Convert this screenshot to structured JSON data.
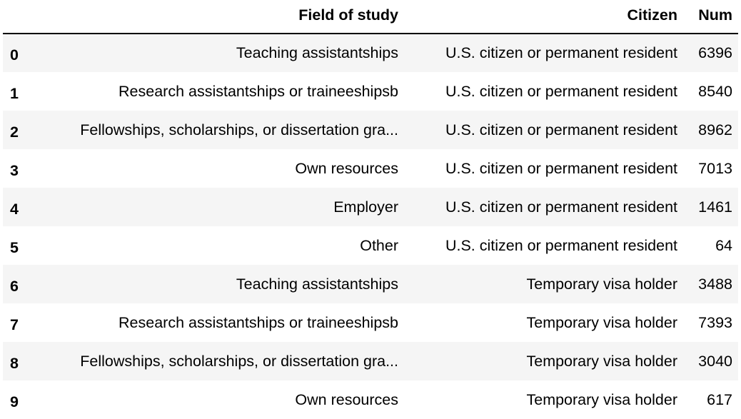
{
  "table": {
    "columns": [
      "",
      "Field of study",
      "Citizen",
      "Num"
    ],
    "rows": [
      {
        "index": "0",
        "field": "Teaching assistantships",
        "citizen": "U.S. citizen or permanent resident",
        "num": "6396"
      },
      {
        "index": "1",
        "field": "Research assistantships or traineeshipsb",
        "citizen": "U.S. citizen or permanent resident",
        "num": "8540"
      },
      {
        "index": "2",
        "field": "Fellowships, scholarships, or dissertation gra...",
        "citizen": "U.S. citizen or permanent resident",
        "num": "8962"
      },
      {
        "index": "3",
        "field": "Own resources",
        "citizen": "U.S. citizen or permanent resident",
        "num": "7013"
      },
      {
        "index": "4",
        "field": "Employer",
        "citizen": "U.S. citizen or permanent resident",
        "num": "1461"
      },
      {
        "index": "5",
        "field": "Other",
        "citizen": "U.S. citizen or permanent resident",
        "num": "64"
      },
      {
        "index": "6",
        "field": "Teaching assistantships",
        "citizen": "Temporary visa holder",
        "num": "3488"
      },
      {
        "index": "7",
        "field": "Research assistantships or traineeshipsb",
        "citizen": "Temporary visa holder",
        "num": "7393"
      },
      {
        "index": "8",
        "field": "Fellowships, scholarships, or dissertation gra...",
        "citizen": "Temporary visa holder",
        "num": "3040"
      },
      {
        "index": "9",
        "field": "Own resources",
        "citizen": "Temporary visa holder",
        "num": "617"
      }
    ]
  }
}
